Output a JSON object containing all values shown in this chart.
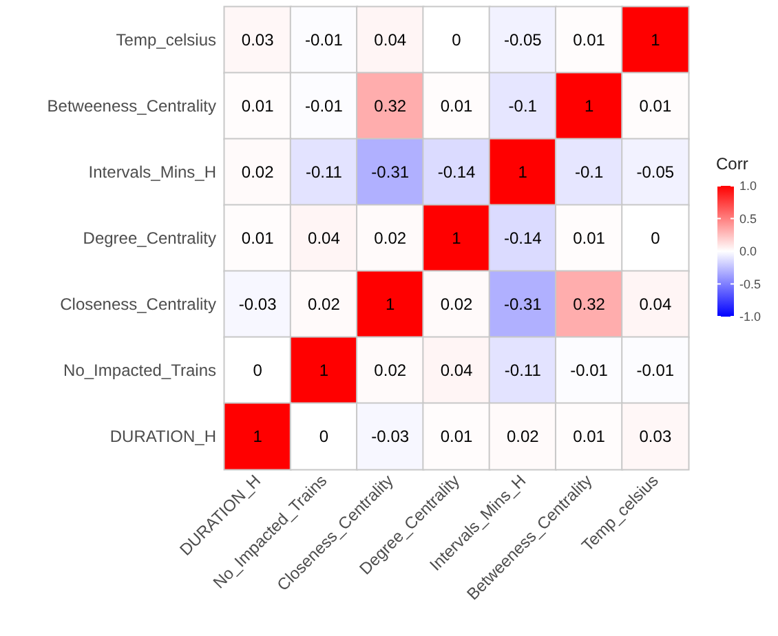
{
  "chart_data": {
    "type": "heatmap",
    "clabel": "Corr",
    "categories": [
      "DURATION_H",
      "No_Impacted_Trains",
      "Closeness_Centrality",
      "Degree_Centrality",
      "Intervals_Mins_H",
      "Betweeness_Centrality",
      "Temp_celsius"
    ],
    "y_categories": [
      "Temp_celsius",
      "Betweeness_Centrality",
      "Intervals_Mins_H",
      "Degree_Centrality",
      "Closeness_Centrality",
      "No_Impacted_Trains",
      "DURATION_H"
    ],
    "cells": [
      [
        0.03,
        -0.01,
        0.04,
        0,
        -0.05,
        0.01,
        1
      ],
      [
        0.01,
        -0.01,
        0.32,
        0.01,
        -0.1,
        1,
        0.01
      ],
      [
        0.02,
        -0.11,
        -0.31,
        -0.14,
        1,
        -0.1,
        -0.05
      ],
      [
        0.01,
        0.04,
        0.02,
        1,
        -0.14,
        0.01,
        0
      ],
      [
        -0.03,
        0.02,
        1,
        0.02,
        -0.31,
        0.32,
        0.04
      ],
      [
        0,
        1,
        0.02,
        0.04,
        -0.11,
        -0.01,
        -0.01
      ],
      [
        1,
        0,
        -0.03,
        0.01,
        0.02,
        0.01,
        0.03
      ]
    ],
    "data_labels": true,
    "clim": [
      -1,
      1
    ],
    "cticks": [
      {
        "value": -1,
        "label": "-1.0"
      },
      {
        "value": -0.5,
        "label": "-0.5"
      },
      {
        "value": 0,
        "label": "0.0"
      },
      {
        "value": 0.5,
        "label": "0.5"
      },
      {
        "value": 1,
        "label": "1.0"
      }
    ]
  }
}
